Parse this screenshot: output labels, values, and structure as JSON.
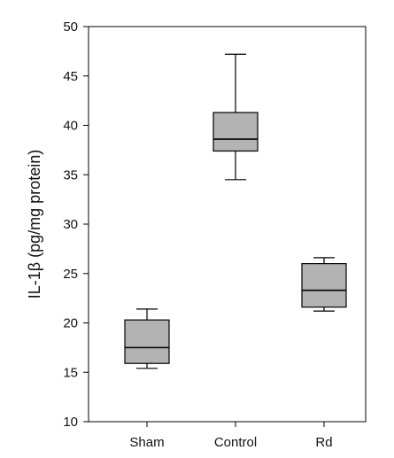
{
  "chart_data": {
    "type": "box",
    "categories": [
      "Sham",
      "Control",
      "Rd"
    ],
    "ylabel": "IL-1β (pg/mg protein)",
    "xlabel": "",
    "ylim": [
      10,
      50
    ],
    "yticks": [
      10,
      15,
      20,
      25,
      30,
      35,
      40,
      45,
      50
    ],
    "grid": false,
    "box_fill": "#b3b3b3",
    "line_color": "#000000",
    "boxes": [
      {
        "category": "Sham",
        "min": 15.4,
        "q1": 15.9,
        "median": 17.5,
        "q3": 20.3,
        "max": 21.4
      },
      {
        "category": "Control",
        "min": 34.5,
        "q1": 37.4,
        "median": 38.6,
        "q3": 41.3,
        "max": 47.2
      },
      {
        "category": "Rd",
        "min": 21.2,
        "q1": 21.6,
        "median": 23.3,
        "q3": 26.0,
        "max": 26.6
      }
    ]
  }
}
